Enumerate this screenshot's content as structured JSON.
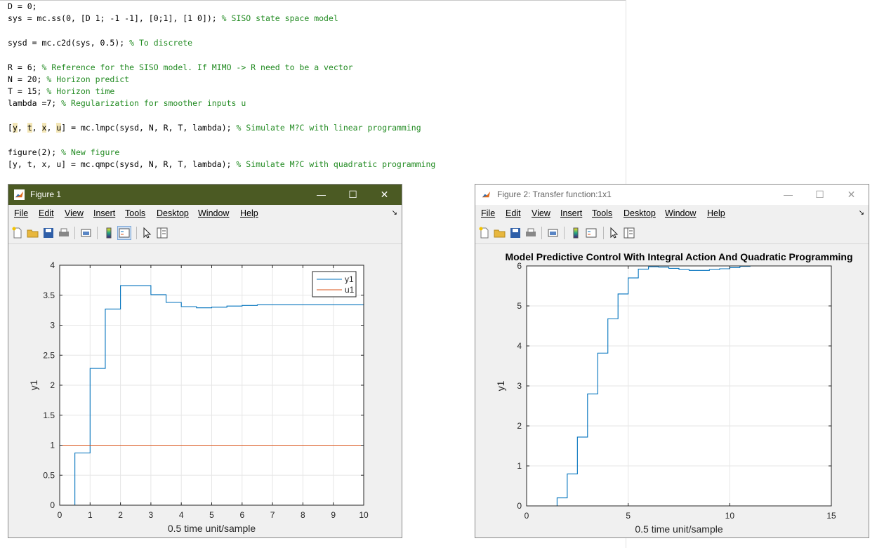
{
  "editor": {
    "lines": [
      {
        "code": "D = 0;",
        "comment": ""
      },
      {
        "code": "sys = mc.ss(0, [D 1; -1 -1], [0;1], [1 0]); ",
        "comment": "% SISO state space model"
      },
      {
        "code": "",
        "comment": ""
      },
      {
        "code": "sysd = mc.c2d(sys, 0.5); ",
        "comment": "% To discrete"
      },
      {
        "code": "",
        "comment": ""
      },
      {
        "code": "R = 6; ",
        "comment": "% Reference for the SISO model. If MIMO -> R need to be a vector"
      },
      {
        "code": "N = 20; ",
        "comment": "% Horizon predict"
      },
      {
        "code": "T = 15; ",
        "comment": "% Horizon time"
      },
      {
        "code": "lambda =7; ",
        "comment": "% Regularization for smoother inputs u"
      },
      {
        "code": "",
        "comment": ""
      },
      {
        "code": "[y, t, x, u] = mc.lmpc(sysd, N, R, T, lambda); ",
        "comment": "% Simulate M?C with linear programming"
      },
      {
        "code": "",
        "comment": ""
      },
      {
        "code": "figure(2); ",
        "comment": "% New figure"
      },
      {
        "code": "[y, t, x, u] = mc.qmpc(sysd, N, R, T, lambda); ",
        "comment": "% Simulate M?C with quadratic programming"
      }
    ]
  },
  "colors": {
    "comment": "#228b22",
    "fig1_titlebar": "#4b5a23",
    "series_y1": "#0072bd",
    "series_u1": "#d95319",
    "grid": "#e6e6e6"
  },
  "menu": [
    "File",
    "Edit",
    "View",
    "Insert",
    "Tools",
    "Desktop",
    "Window",
    "Help"
  ],
  "toolbar_icons": [
    "new-figure-icon",
    "open-file-icon",
    "save-icon",
    "print-icon",
    "print-preview-icon",
    "colorbar-icon",
    "legend-icon",
    "pointer-icon",
    "property-inspector-icon"
  ],
  "window_controls": {
    "minimize": "—",
    "maximize": "☐",
    "close": "✕"
  },
  "figure1": {
    "window_title": "Figure 1",
    "chart_data": {
      "type": "line",
      "title": "",
      "xlabel": "0.5 time unit/sample",
      "ylabel": "y1",
      "xlim": [
        0,
        10
      ],
      "ylim": [
        0,
        4
      ],
      "xticks": [
        "0",
        "1",
        "2",
        "3",
        "4",
        "5",
        "6",
        "7",
        "8",
        "9",
        "10"
      ],
      "yticks": [
        "0",
        "0.5",
        "1",
        "1.5",
        "2",
        "2.5",
        "3",
        "3.5",
        "4"
      ],
      "grid": true,
      "legend_position": "top-right",
      "series": [
        {
          "name": "y1",
          "step": true,
          "x": [
            0,
            0.5,
            1,
            1.5,
            2,
            2.5,
            3,
            3.5,
            4,
            4.5,
            5,
            5.5,
            6,
            6.5,
            7,
            7.5,
            8,
            8.5,
            9,
            9.5,
            10
          ],
          "y": [
            0,
            0.87,
            2.28,
            3.27,
            3.66,
            3.66,
            3.51,
            3.38,
            3.31,
            3.29,
            3.3,
            3.32,
            3.33,
            3.34,
            3.34,
            3.34,
            3.34,
            3.34,
            3.34,
            3.34,
            3.34
          ]
        },
        {
          "name": "u1",
          "step": true,
          "x": [
            0,
            10
          ],
          "y": [
            1,
            1
          ]
        }
      ]
    }
  },
  "figure2": {
    "window_title": "Figure 2: Transfer function:1x1",
    "chart_data": {
      "type": "line",
      "title": "Model Predictive Control With Integral Action And Quadratic Programming",
      "xlabel": "0.5 time unit/sample",
      "ylabel": "y1",
      "xlim": [
        0,
        15
      ],
      "ylim": [
        0,
        6
      ],
      "xticks": [
        "0",
        "5",
        "10",
        "15"
      ],
      "yticks": [
        "0",
        "1",
        "2",
        "3",
        "4",
        "5",
        "6"
      ],
      "grid": true,
      "series": [
        {
          "step": true,
          "x": [
            0,
            0.5,
            1,
            1.5,
            2,
            2.5,
            3,
            3.5,
            4,
            4.5,
            5,
            5.5,
            6,
            6.5,
            7,
            7.5,
            8,
            8.5,
            9,
            9.5,
            10,
            10.5,
            11,
            11.5,
            12,
            12.5,
            13,
            13.5,
            14,
            14.5,
            15
          ],
          "y": [
            0,
            0,
            0,
            0.2,
            0.8,
            1.72,
            2.8,
            3.82,
            4.68,
            5.3,
            5.7,
            5.92,
            5.98,
            5.97,
            5.94,
            5.91,
            5.89,
            5.89,
            5.91,
            5.93,
            5.96,
            5.99,
            6.0,
            6.0,
            6.0,
            6.0,
            6.0,
            6.0,
            6.0,
            6.0,
            6.0
          ]
        }
      ]
    }
  }
}
